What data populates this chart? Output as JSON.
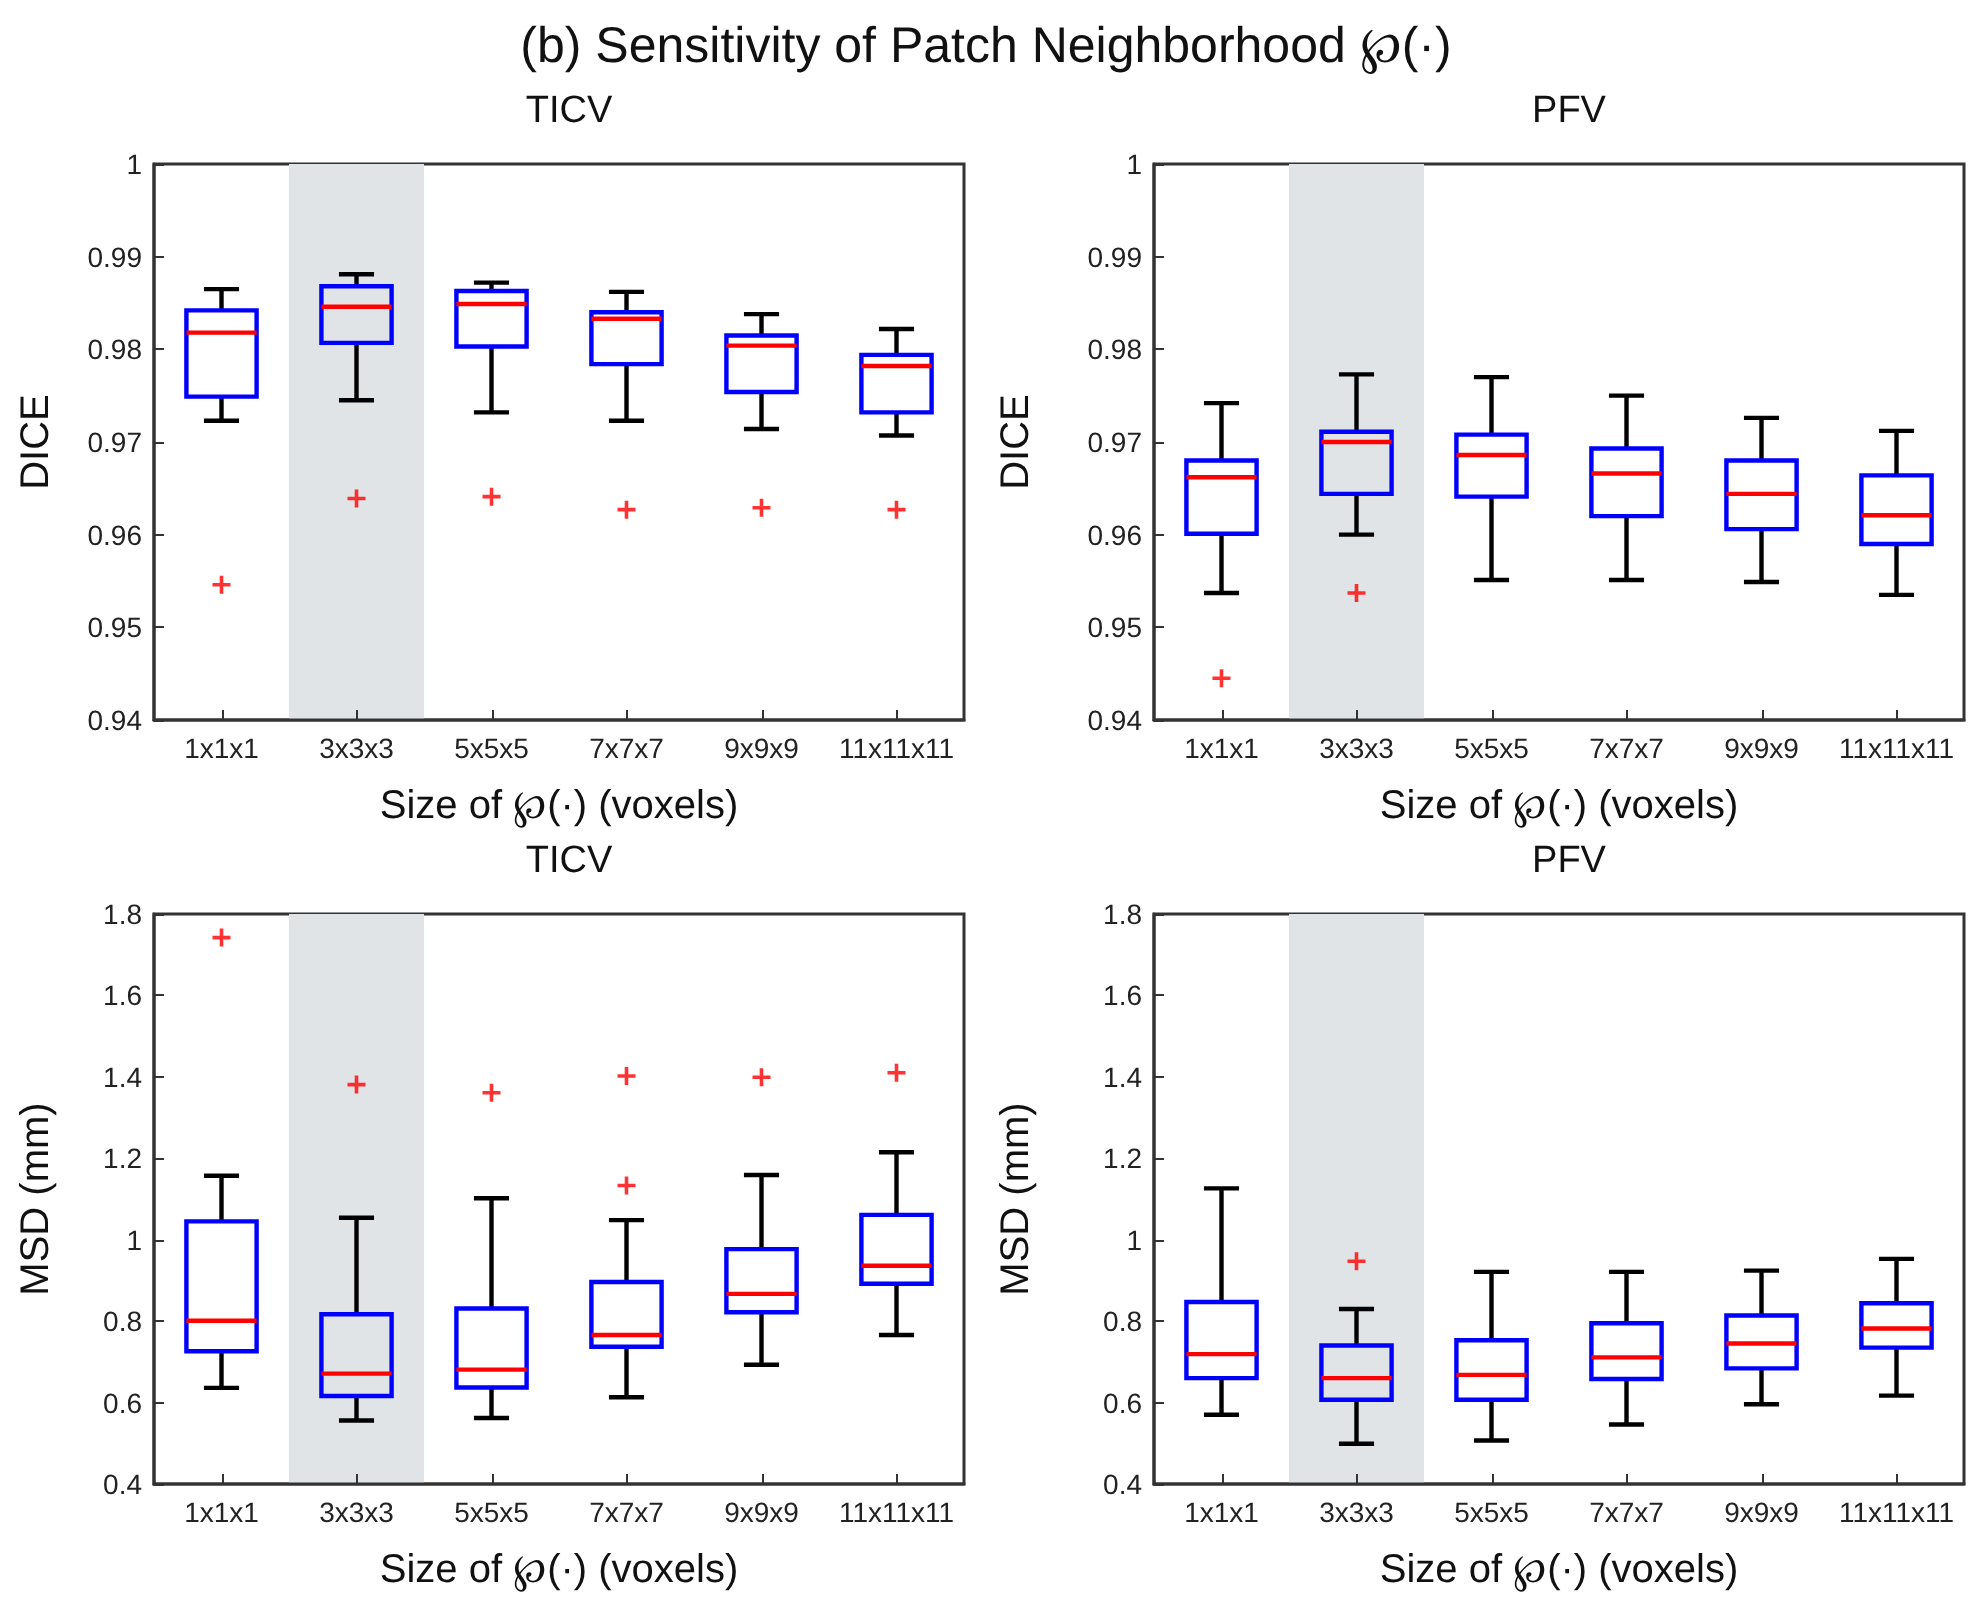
{
  "chart_data": [
    {
      "type": "box",
      "title": "TICV",
      "annotations": [
        "(b) Sensitivity of Patch Neighborhood ℘(·)"
      ],
      "xlabel": "Size of ℘(·) (voxels)",
      "ylabel": "DICE",
      "categories": [
        "1x1x1",
        "3x3x3",
        "5x5x5",
        "7x7x7",
        "9x9x9",
        "11x11x11"
      ],
      "ylim": [
        0.94,
        1
      ],
      "yticks": [
        0.94,
        0.95,
        0.96,
        0.97,
        0.98,
        0.99,
        1
      ],
      "grid": false,
      "marker": "cross",
      "bands": [
        {
          "axis": "x",
          "from": "3x3x3",
          "to": "3x3x3",
          "color": "#e1e4e7"
        }
      ],
      "series": [
        {
          "color": "#0000ff",
          "boxes": [
            {
              "low": 0.9723,
              "q1": 0.9749,
              "median": 0.9818,
              "q3": 0.9842,
              "high": 0.9865,
              "outliers": [
                0.9546
              ]
            },
            {
              "low": 0.9745,
              "q1": 0.9807,
              "median": 0.9846,
              "q3": 0.9868,
              "high": 0.9881,
              "outliers": [
                0.9639
              ]
            },
            {
              "low": 0.9732,
              "q1": 0.9803,
              "median": 0.9849,
              "q3": 0.9863,
              "high": 0.9872,
              "outliers": [
                0.9641
              ]
            },
            {
              "low": 0.9723,
              "q1": 0.9784,
              "median": 0.9833,
              "q3": 0.984,
              "high": 0.9862,
              "outliers": [
                0.9627
              ]
            },
            {
              "low": 0.9714,
              "q1": 0.9754,
              "median": 0.9804,
              "q3": 0.9815,
              "high": 0.9838,
              "outliers": [
                0.9629
              ]
            },
            {
              "low": 0.9707,
              "q1": 0.9732,
              "median": 0.9782,
              "q3": 0.9794,
              "high": 0.9822,
              "outliers": [
                0.9627
              ]
            }
          ]
        }
      ]
    },
    {
      "type": "box",
      "title": "PFV",
      "xlabel": "Size of ℘(·) (voxels)",
      "ylabel": "DICE",
      "categories": [
        "1x1x1",
        "3x3x3",
        "5x5x5",
        "7x7x7",
        "9x9x9",
        "11x11x11"
      ],
      "ylim": [
        0.94,
        1
      ],
      "yticks": [
        0.94,
        0.95,
        0.96,
        0.97,
        0.98,
        0.99,
        1
      ],
      "grid": false,
      "marker": "cross",
      "bands": [
        {
          "axis": "x",
          "from": "3x3x3",
          "to": "3x3x3",
          "color": "#e1e4e7"
        }
      ],
      "series": [
        {
          "color": "#0000ff",
          "boxes": [
            {
              "low": 0.9537,
              "q1": 0.9601,
              "median": 0.9662,
              "q3": 0.968,
              "high": 0.9742,
              "outliers": [
                0.9445
              ]
            },
            {
              "low": 0.96,
              "q1": 0.9644,
              "median": 0.97,
              "q3": 0.9711,
              "high": 0.9773,
              "outliers": [
                0.9537
              ]
            },
            {
              "low": 0.9551,
              "q1": 0.9641,
              "median": 0.9686,
              "q3": 0.9708,
              "high": 0.977
            },
            {
              "low": 0.9551,
              "q1": 0.962,
              "median": 0.9666,
              "q3": 0.9693,
              "high": 0.975
            },
            {
              "low": 0.9549,
              "q1": 0.9606,
              "median": 0.9644,
              "q3": 0.968,
              "high": 0.9726
            },
            {
              "low": 0.9535,
              "q1": 0.959,
              "median": 0.9621,
              "q3": 0.9664,
              "high": 0.9712
            }
          ]
        }
      ]
    },
    {
      "type": "box",
      "title": "TICV",
      "xlabel": "Size of ℘(·) (voxels)",
      "ylabel": "MSD (mm)",
      "categories": [
        "1x1x1",
        "3x3x3",
        "5x5x5",
        "7x7x7",
        "9x9x9",
        "11x11x11"
      ],
      "ylim": [
        0.4,
        1.8
      ],
      "yticks": [
        0.4,
        0.6,
        0.8,
        1,
        1.2,
        1.4,
        1.6,
        1.8
      ],
      "grid": false,
      "marker": "cross",
      "bands": [
        {
          "axis": "x",
          "from": "3x3x3",
          "to": "3x3x3",
          "color": "#e1e4e7"
        }
      ],
      "series": [
        {
          "color": "#0000ff",
          "boxes": [
            {
              "low": 0.636,
              "q1": 0.726,
              "median": 0.801,
              "q3": 1.045,
              "high": 1.157,
              "outliers": [
                1.742
              ]
            },
            {
              "low": 0.556,
              "q1": 0.616,
              "median": 0.671,
              "q3": 0.817,
              "high": 1.054,
              "outliers": [
                1.381
              ]
            },
            {
              "low": 0.562,
              "q1": 0.637,
              "median": 0.681,
              "q3": 0.831,
              "high": 1.102,
              "outliers": [
                1.361
              ]
            },
            {
              "low": 0.613,
              "q1": 0.737,
              "median": 0.766,
              "q3": 0.896,
              "high": 1.048,
              "outliers": [
                1.133,
                1.402
              ]
            },
            {
              "low": 0.693,
              "q1": 0.822,
              "median": 0.867,
              "q3": 0.977,
              "high": 1.159,
              "outliers": [
                1.399
              ]
            },
            {
              "low": 0.766,
              "q1": 0.892,
              "median": 0.936,
              "q3": 1.061,
              "high": 1.215,
              "outliers": [
                1.41
              ]
            }
          ]
        }
      ]
    },
    {
      "type": "box",
      "title": "PFV",
      "xlabel": "Size of ℘(·) (voxels)",
      "ylabel": "MSD (mm)",
      "categories": [
        "1x1x1",
        "3x3x3",
        "5x5x5",
        "7x7x7",
        "9x9x9",
        "11x11x11"
      ],
      "ylim": [
        0.4,
        1.8
      ],
      "yticks": [
        0.4,
        0.6,
        0.8,
        1,
        1.2,
        1.4,
        1.6,
        1.8
      ],
      "grid": false,
      "marker": "cross",
      "bands": [
        {
          "axis": "x",
          "from": "3x3x3",
          "to": "3x3x3",
          "color": "#e1e4e7"
        }
      ],
      "series": [
        {
          "color": "#0000ff",
          "boxes": [
            {
              "low": 0.57,
              "q1": 0.66,
              "median": 0.719,
              "q3": 0.847,
              "high": 1.126
            },
            {
              "low": 0.499,
              "q1": 0.607,
              "median": 0.66,
              "q3": 0.74,
              "high": 0.83,
              "outliers": [
                0.947
              ]
            },
            {
              "low": 0.507,
              "q1": 0.607,
              "median": 0.668,
              "q3": 0.753,
              "high": 0.921
            },
            {
              "low": 0.546,
              "q1": 0.658,
              "median": 0.711,
              "q3": 0.795,
              "high": 0.921
            },
            {
              "low": 0.596,
              "q1": 0.684,
              "median": 0.745,
              "q3": 0.814,
              "high": 0.924
            },
            {
              "low": 0.617,
              "q1": 0.735,
              "median": 0.782,
              "q3": 0.844,
              "high": 0.953
            }
          ]
        }
      ]
    }
  ]
}
